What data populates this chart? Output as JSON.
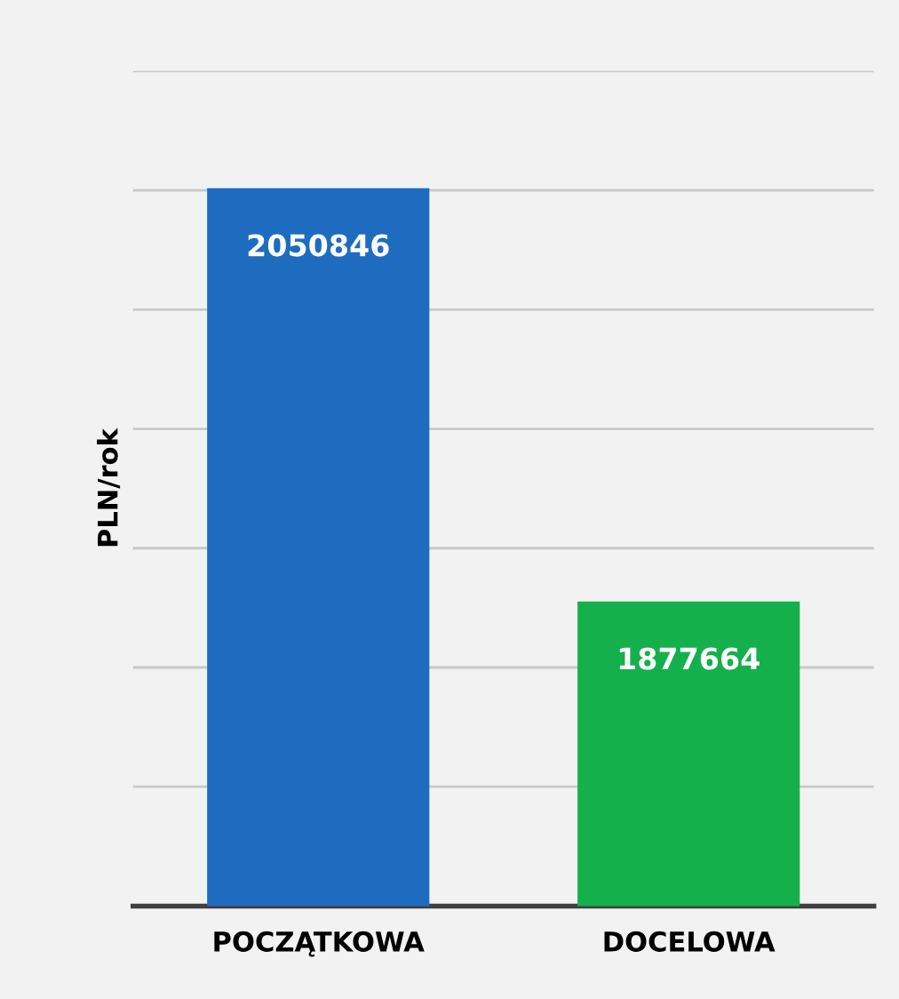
{
  "chart_data": {
    "type": "bar",
    "ylabel": "PLN/rok",
    "categories": [
      "POCZĄTKOWA",
      "DOCELOWA"
    ],
    "values": [
      2050846,
      1877664
    ],
    "colors": [
      "#1e6cc0",
      "#14b04c"
    ],
    "ylim": [
      1750000,
      2100000
    ],
    "yticks": [
      {
        "value": 1750000,
        "label": null
      },
      {
        "value": 1800000,
        "label": null
      },
      {
        "value": 1850000,
        "label": null
      },
      {
        "value": 1900000,
        "label": null
      },
      {
        "value": 1950000,
        "label": null
      },
      {
        "value": 2000000,
        "label": null
      },
      {
        "value": 2050000,
        "label": null
      },
      {
        "value": 2100000,
        "label": null
      }
    ],
    "grid": "y",
    "data_labels": true,
    "tick_labels": "x"
  }
}
